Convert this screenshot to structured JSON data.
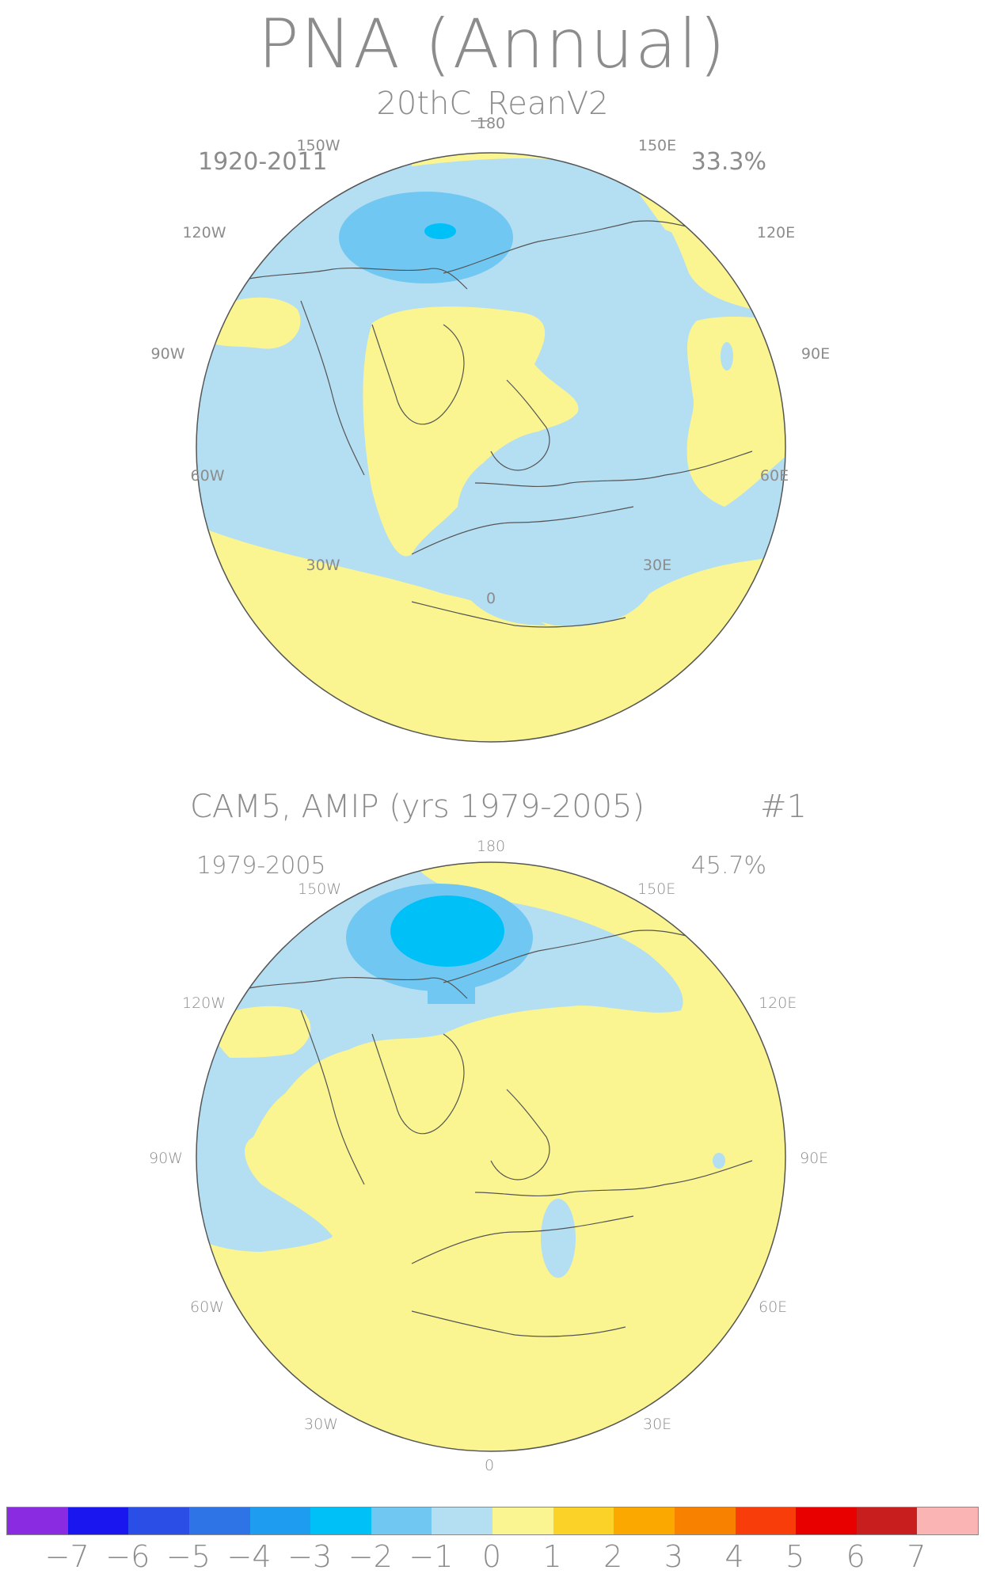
{
  "title": "PNA (Annual)",
  "panels": [
    {
      "title": "20thC_ReanV2",
      "tag": "",
      "period": "1920-2011",
      "percent": "33.3%"
    },
    {
      "title": "CAM5, AMIP (yrs 1979-2005)",
      "tag": "#1",
      "period": "1979-2005",
      "percent": "45.7%"
    }
  ],
  "longitude_labels": [
    "180",
    "150E",
    "120E",
    "90E",
    "60E",
    "30E",
    "0",
    "30W",
    "60W",
    "90W",
    "120W",
    "150W"
  ],
  "colorbar": {
    "colors": [
      "#8a2be2",
      "#1a16f0",
      "#2a4ee6",
      "#2e74e6",
      "#1e9cf0",
      "#00c0f8",
      "#70c8f2",
      "#b4def2",
      "#faf590",
      "#fad228",
      "#fba800",
      "#f88200",
      "#f83c0a",
      "#e80000",
      "#c81e1e",
      "#fbb4b4"
    ],
    "tick_labels": [
      "-7",
      "-6",
      "-5",
      "-4",
      "-3",
      "-2",
      "-1",
      "0",
      "1",
      "2",
      "3",
      "4",
      "5",
      "6",
      "7"
    ]
  }
}
